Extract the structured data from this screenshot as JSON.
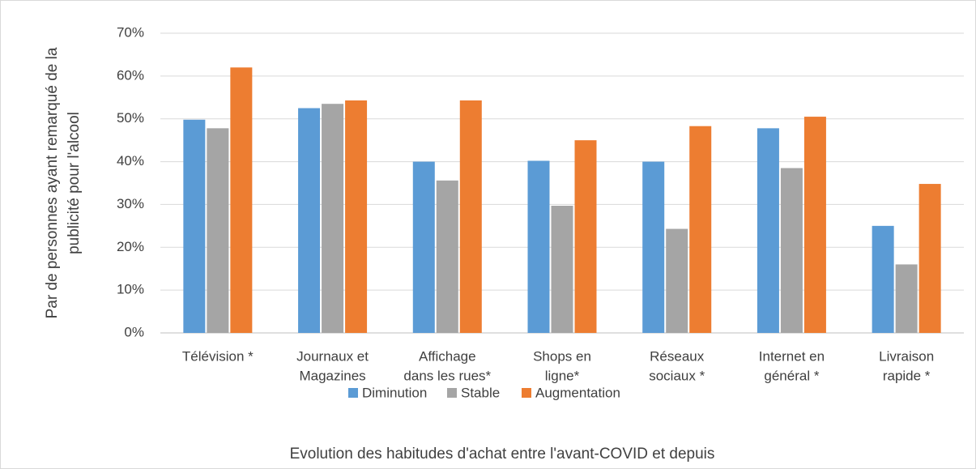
{
  "chart_data": {
    "type": "bar",
    "x_label": "Evolution des habitudes d'achat entre l'avant-COVID et depuis",
    "y_label": [
      "Par de personnes ayant remarqué de la",
      "publicité pour l'alcool"
    ],
    "categories": [
      [
        "Télévision *"
      ],
      [
        "Journaux et",
        "Magazines"
      ],
      [
        "Affichage",
        "dans les rues*"
      ],
      [
        "Shops en",
        "ligne*"
      ],
      [
        "Réseaux",
        "sociaux *"
      ],
      [
        "Internet en",
        "général *"
      ],
      [
        "Livraison",
        "rapide *"
      ]
    ],
    "series": [
      {
        "name": "Diminution",
        "color": "#5b9bd5",
        "values": [
          49.8,
          52.5,
          40,
          40.2,
          40,
          47.8,
          25
        ]
      },
      {
        "name": "Stable",
        "color": "#a5a5a5",
        "values": [
          47.8,
          53.5,
          35.6,
          29.7,
          24.3,
          38.5,
          16
        ]
      },
      {
        "name": "Augmentation",
        "color": "#ed7d31",
        "values": [
          62,
          54.3,
          54.3,
          45,
          48.3,
          50.5,
          34.8
        ]
      }
    ],
    "ylim": [
      0,
      70
    ],
    "yticks": [
      {
        "value": 0,
        "label": "0%"
      },
      {
        "value": 10,
        "label": "10%"
      },
      {
        "value": 20,
        "label": "20%"
      },
      {
        "value": 30,
        "label": "30%"
      },
      {
        "value": 40,
        "label": "40%"
      },
      {
        "value": 50,
        "label": "50%"
      },
      {
        "value": 60,
        "label": "60%"
      },
      {
        "value": 70,
        "label": "70%"
      }
    ],
    "grid": true,
    "legend": "bottom"
  }
}
